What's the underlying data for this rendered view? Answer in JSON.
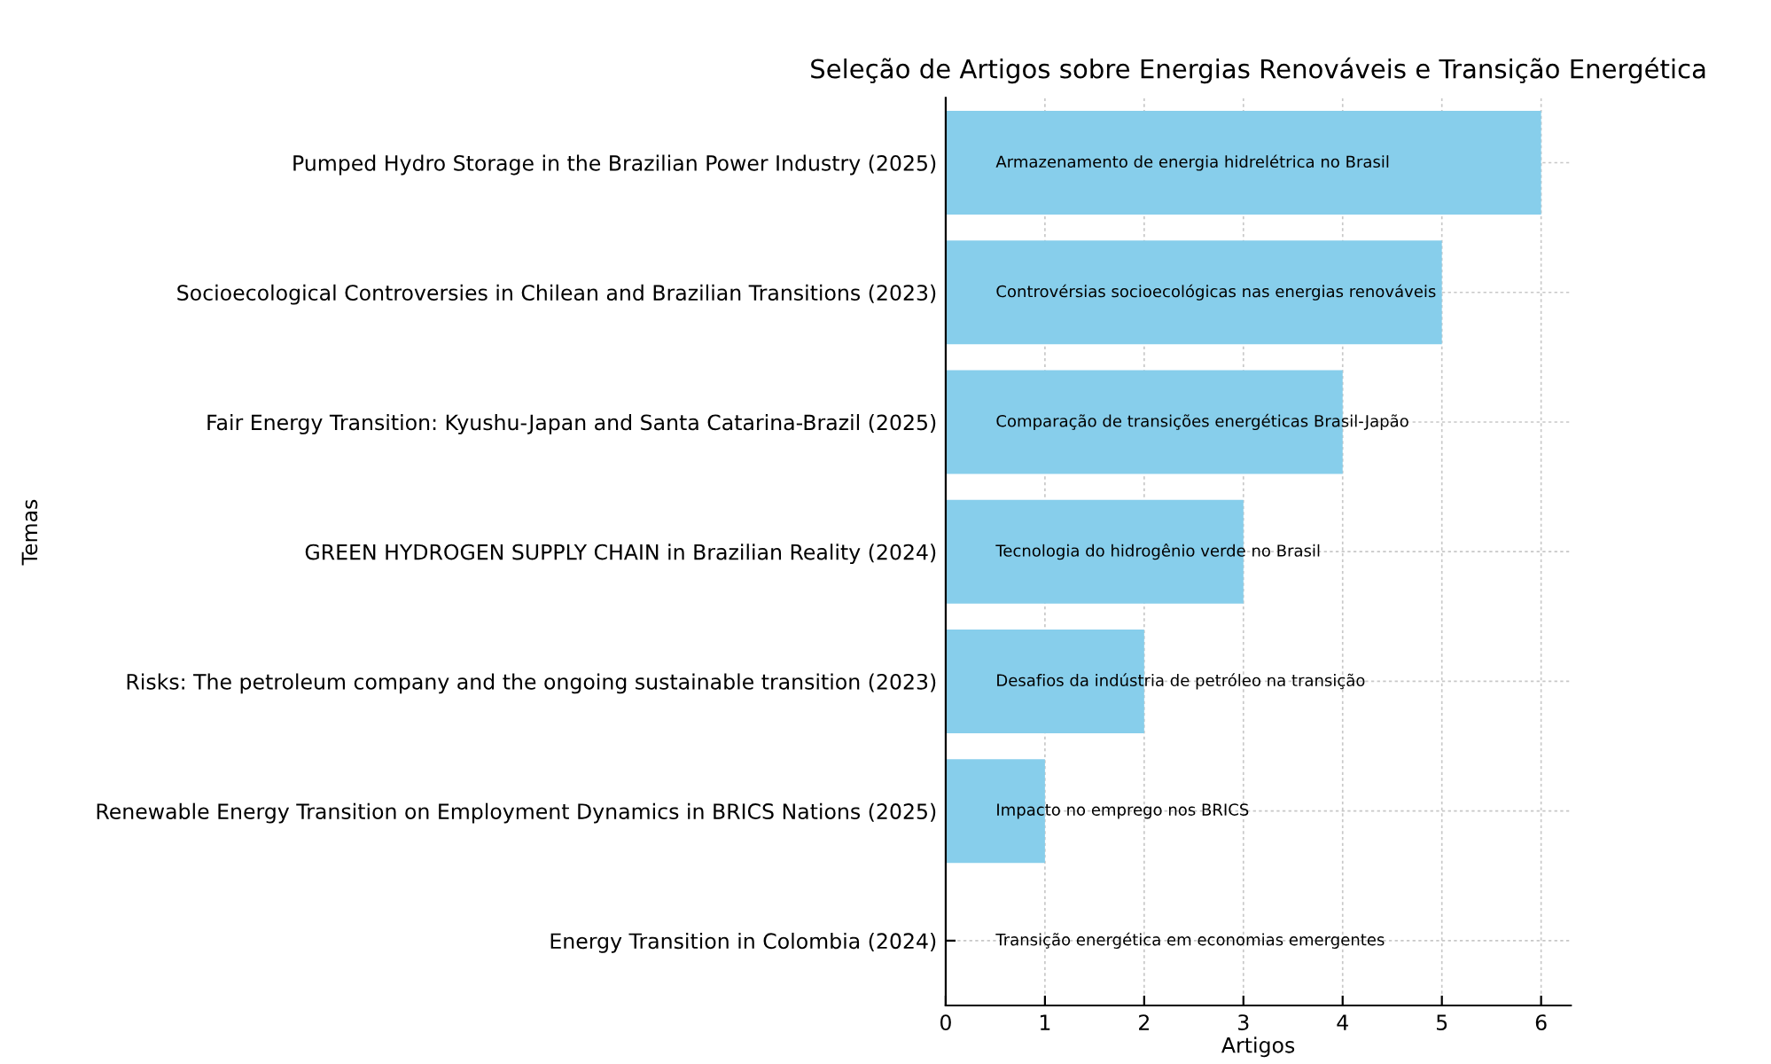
{
  "chart_data": {
    "type": "bar",
    "orientation": "horizontal",
    "title": "Seleção de Artigos sobre Energias Renováveis e Transição Energética",
    "xlabel": "Artigos",
    "ylabel": "Temas",
    "categories": [
      "Pumped Hydro Storage in the Brazilian Power Industry (2025)",
      "Socioecological Controversies in Chilean and Brazilian Transitions (2023)",
      "Fair Energy Transition: Kyushu-Japan and Santa Catarina-Brazil (2025)",
      "GREEN HYDROGEN SUPPLY CHAIN in Brazilian Reality (2024)",
      "Risks: The petroleum company and the ongoing sustainable transition (2023)",
      "Renewable Energy Transition on Employment Dynamics in BRICS Nations (2025)",
      "Energy Transition in Colombia (2024)"
    ],
    "values": [
      6,
      5,
      4,
      3,
      2,
      1,
      0
    ],
    "color": "#87ceeb",
    "xlim": [
      0,
      6.3
    ],
    "xticks": [
      0,
      1,
      2,
      3,
      4,
      5,
      6
    ],
    "grid": true,
    "annotations": [
      "Armazenamento de energia hidrelétrica no Brasil",
      "Controvérsias socioecológicas nas energias renováveis",
      "Comparação de transições energéticas Brasil-Japão",
      "Tecnologia do hidrogênio verde no Brasil",
      "Desafios da indústria de petróleo na transição",
      "Impacto no emprego nos BRICS",
      "Transição energética em economias emergentes"
    ]
  }
}
